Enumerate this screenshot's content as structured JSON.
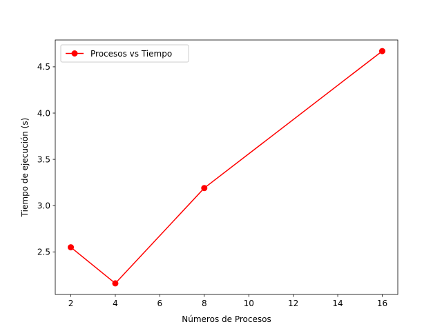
{
  "chart_data": {
    "type": "line",
    "title": "",
    "xlabel": "Números de Procesos",
    "ylabel": "Tiempo de ejecución (s)",
    "xlim": [
      1.3,
      16.7
    ],
    "ylim": [
      2.04,
      4.79
    ],
    "xticks": [
      2,
      4,
      6,
      8,
      10,
      12,
      14,
      16
    ],
    "yticks": [
      2.5,
      3.0,
      3.5,
      4.0,
      4.5
    ],
    "xtick_labels": [
      "2",
      "4",
      "6",
      "8",
      "10",
      "12",
      "14",
      "16"
    ],
    "ytick_labels": [
      "2.5",
      "3.0",
      "3.5",
      "4.0",
      "4.5"
    ],
    "grid": false,
    "legend_position": "upper-left",
    "series": [
      {
        "name": "Procesos vs Tiempo",
        "color": "#ff0000",
        "marker": "circle",
        "x": [
          2,
          4,
          8,
          16
        ],
        "y": [
          2.55,
          2.16,
          3.19,
          4.67
        ]
      }
    ]
  }
}
